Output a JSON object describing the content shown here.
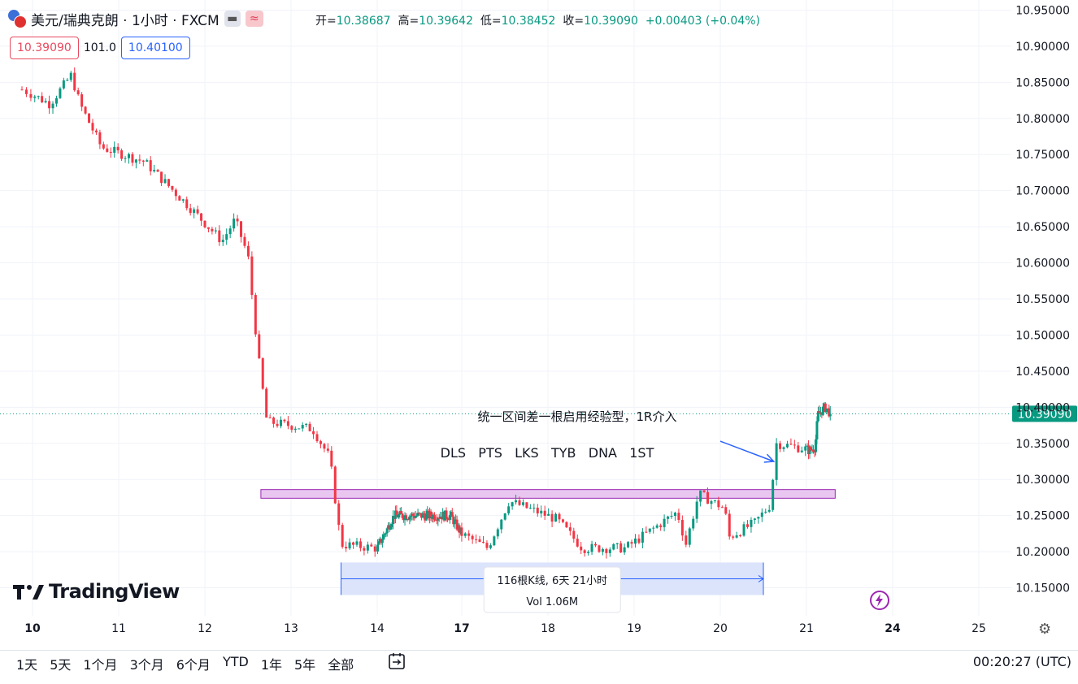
{
  "header": {
    "title": "美元/瑞典克朗 · 1小时 · FXCM",
    "ohlc": [
      {
        "label": "开=",
        "value": "10.38687"
      },
      {
        "label": "高=",
        "value": "10.39642"
      },
      {
        "label": "低=",
        "value": "10.38452"
      },
      {
        "label": "收=",
        "value": "10.39090"
      }
    ],
    "change": "+0.00403 (+0.04%)",
    "bid": "10.39090",
    "spread": "101.0",
    "ask": "10.40100"
  },
  "colors": {
    "up": "#089981",
    "down": "#f23645",
    "last_price": "#089981",
    "zone_fill": "#e9c6f0",
    "zone_border": "#9c27b0",
    "measure": "#2962ff",
    "arrow": "#2962ff"
  },
  "bottom": {
    "ranges": [
      "1天",
      "5天",
      "1个月",
      "3个月",
      "6个月",
      "YTD",
      "1年",
      "5年",
      "全部"
    ],
    "clock": "00:20:27 (UTC)"
  },
  "logo_text": "TradingView",
  "chart_data": {
    "type": "candlestick",
    "price_ticks": [
      "10.95000",
      "10.90000",
      "10.85000",
      "10.80000",
      "10.75000",
      "10.70000",
      "10.65000",
      "10.60000",
      "10.55000",
      "10.50000",
      "10.45000",
      "10.40000",
      "10.35000",
      "10.30000",
      "10.25000",
      "10.20000",
      "10.15000"
    ],
    "ylim": [
      10.118,
      10.955
    ],
    "time_ticks": [
      {
        "label": "10",
        "day": 10,
        "bold": true
      },
      {
        "label": "11",
        "day": 11
      },
      {
        "label": "12",
        "day": 12
      },
      {
        "label": "13",
        "day": 13
      },
      {
        "label": "14",
        "day": 14
      },
      {
        "label": "17",
        "day": 17,
        "bold": true
      },
      {
        "label": "18",
        "day": 18
      },
      {
        "label": "19",
        "day": 19
      },
      {
        "label": "20",
        "day": 20
      },
      {
        "label": "21",
        "day": 21
      },
      {
        "label": "24",
        "day": 24,
        "bold": true
      },
      {
        "label": "25",
        "day": 25
      }
    ],
    "last_price": "10.39090",
    "key_points": [
      {
        "t": 9.9,
        "p": 10.84
      },
      {
        "t": 10.2,
        "p": 10.82
      },
      {
        "t": 10.45,
        "p": 10.86
      },
      {
        "t": 10.55,
        "p": 10.82
      },
      {
        "t": 10.8,
        "p": 10.76
      },
      {
        "t": 11.3,
        "p": 10.74
      },
      {
        "t": 11.8,
        "p": 10.68
      },
      {
        "t": 12.2,
        "p": 10.63
      },
      {
        "t": 12.35,
        "p": 10.66
      },
      {
        "t": 12.5,
        "p": 10.61
      },
      {
        "t": 12.62,
        "p": 10.47
      },
      {
        "t": 12.72,
        "p": 10.38
      },
      {
        "t": 13.25,
        "p": 10.37
      },
      {
        "t": 13.45,
        "p": 10.33
      },
      {
        "t": 13.58,
        "p": 10.21
      },
      {
        "t": 14.0,
        "p": 10.205
      },
      {
        "t": 14.6,
        "p": 10.25
      },
      {
        "t": 16.6,
        "p": 10.25
      },
      {
        "t": 17.3,
        "p": 10.205
      },
      {
        "t": 17.55,
        "p": 10.27
      },
      {
        "t": 18.1,
        "p": 10.245
      },
      {
        "t": 18.4,
        "p": 10.205
      },
      {
        "t": 18.9,
        "p": 10.205
      },
      {
        "t": 19.5,
        "p": 10.255
      },
      {
        "t": 19.6,
        "p": 10.21
      },
      {
        "t": 19.75,
        "p": 10.28
      },
      {
        "t": 20.05,
        "p": 10.26
      },
      {
        "t": 20.1,
        "p": 10.22
      },
      {
        "t": 20.4,
        "p": 10.24
      },
      {
        "t": 20.58,
        "p": 10.265
      },
      {
        "t": 20.65,
        "p": 10.35
      },
      {
        "t": 21.1,
        "p": 10.34
      },
      {
        "t": 21.3,
        "p": 10.345
      },
      {
        "t": 21.4,
        "p": 10.39
      },
      {
        "t": 21.65,
        "p": 10.4
      },
      {
        "t": 21.85,
        "p": 10.391
      }
    ],
    "zone": {
      "t_start": 12.65,
      "t_end": 22.0,
      "p_low": 10.274,
      "p_high": 10.286
    },
    "measure": {
      "t_start": 13.58,
      "t_end": 20.5,
      "p_low": 10.14,
      "p_high": 10.185,
      "label1": "116根K线, 6天 21小时",
      "label2": "Vol 1.06M"
    },
    "annotations": {
      "note": "统一区间差一根启用经验型，1R介入",
      "labels": "DLS   PTS   LKS   TYB   DNA   1ST"
    },
    "arrow": {
      "from_t": 20.0,
      "from_p": 10.353,
      "to_t": 20.62,
      "to_p": 10.325
    }
  }
}
